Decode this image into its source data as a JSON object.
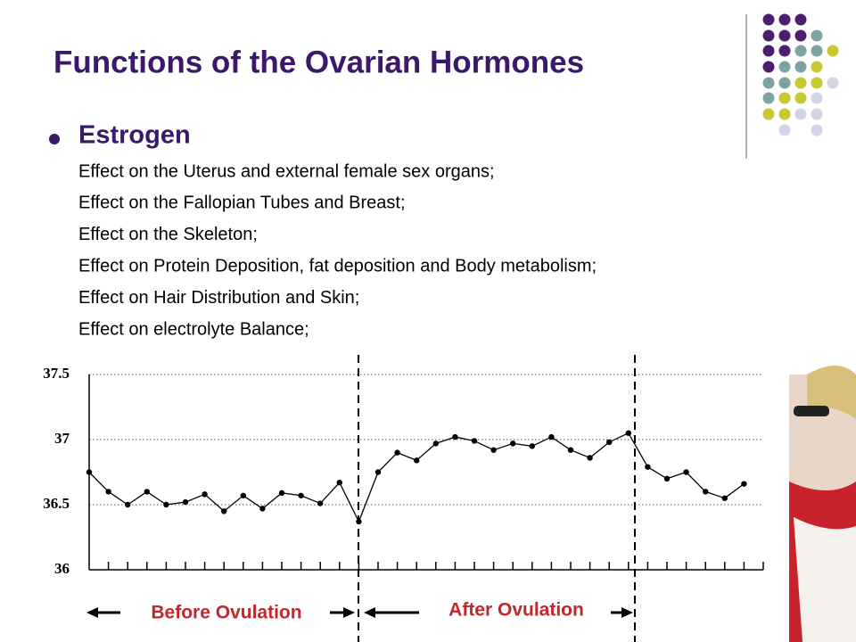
{
  "title": "Functions of the Ovarian Hormones",
  "bullet": "Estrogen",
  "lines": [
    "Effect on the Uterus and external female sex organs;",
    "Effect on the Fallopian Tubes and Breast;",
    "Effect on the Skeleton;",
    "Effect on Protein Deposition, fat deposition and Body metabolism;",
    "Effect on Hair Distribution and Skin;",
    "Effect on electrolyte Balance;"
  ],
  "chart_data": {
    "type": "line",
    "categories": [
      null,
      null,
      null,
      null,
      null,
      null,
      null,
      null,
      null,
      null,
      null,
      null,
      null,
      null,
      null,
      null,
      null,
      null,
      null,
      null,
      null,
      null,
      null,
      null,
      null,
      null,
      null,
      null,
      null,
      null,
      null,
      null,
      null,
      null,
      null
    ],
    "values": [
      36.75,
      36.6,
      36.5,
      36.6,
      36.5,
      36.52,
      36.58,
      36.45,
      36.57,
      36.47,
      36.59,
      36.57,
      36.51,
      36.67,
      36.37,
      36.75,
      36.9,
      36.84,
      36.97,
      37.02,
      36.99,
      36.92,
      36.97,
      36.95,
      37.02,
      36.92,
      36.86,
      36.98,
      37.05,
      36.79,
      36.7,
      36.75,
      36.6,
      36.55,
      36.66
    ],
    "color": "#000000",
    "ylim": [
      36,
      37.5
    ],
    "yticks": [
      36,
      36.5,
      37,
      37.5
    ],
    "grid": true,
    "annotations": [
      "Before Ovulation",
      "After Ovulation"
    ]
  }
}
